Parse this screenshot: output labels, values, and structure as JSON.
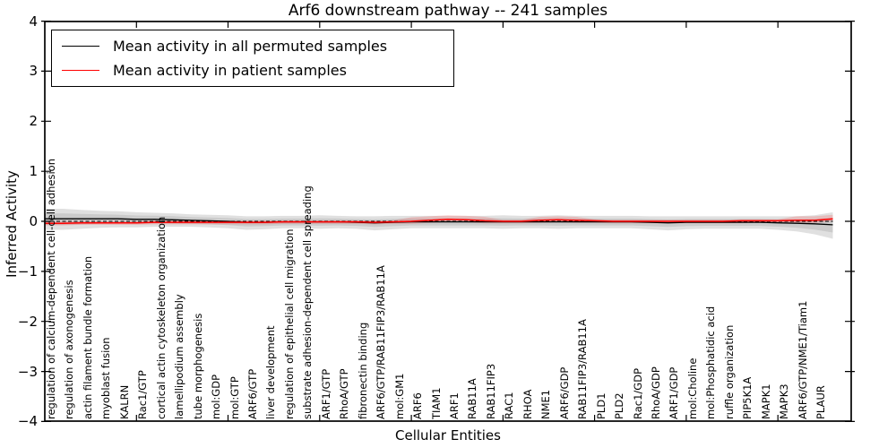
{
  "title": "Arf6 downstream pathway -- 241 samples",
  "legend": {
    "items": [
      {
        "label": "Mean activity in all permuted samples",
        "color": "#000000"
      },
      {
        "label": "Mean activity in patient samples",
        "color": "#ff0000"
      }
    ]
  },
  "chart_data": {
    "type": "line",
    "title": "Arf6 downstream pathway -- 241 samples",
    "xlabel": "Cellular Entities",
    "ylabel": "Inferred Activity",
    "ylim": [
      -4,
      4
    ],
    "yticks": [
      -4,
      -3,
      -2,
      -1,
      0,
      1,
      2,
      3,
      4
    ],
    "ytick_labels": [
      "−4",
      "−3",
      "−2",
      "−1",
      "0",
      "1",
      "2",
      "3",
      "4"
    ],
    "grid": false,
    "legend_position": "upper left",
    "zero_line": {
      "y": 0,
      "style": "dashed",
      "color": "#000000"
    },
    "band_colors": {
      "permuted_std": "rgba(0,0,0,0.12)",
      "patient_std": "rgba(255,0,0,0.16)"
    },
    "categories": [
      "regulation of calcium-dependent cell-cell adhesion",
      "regulation of axonogenesis",
      "actin filament bundle formation",
      "myoblast fusion",
      "KALRN",
      "Rac1/GTP",
      "cortical actin cytoskeleton organization",
      "lamellipodium assembly",
      "tube morphogenesis",
      "mol:GDP",
      "mol:GTP",
      "ARF6/GTP",
      "liver development",
      "regulation of epithelial cell migration",
      "substrate adhesion-dependent cell spreading",
      "ARF1/GTP",
      "RhoA/GTP",
      "fibronectin binding",
      "ARF6/GTP/RAB11FIP3/RAB11A",
      "mol:GM1",
      "ARF6",
      "TIAM1",
      "ARF1",
      "RAB11A",
      "RAB11FIP3",
      "RAC1",
      "RHOA",
      "NME1",
      "ARF6/GDP",
      "RAB11FIP3/RAB11A",
      "PLD1",
      "PLD2",
      "Rac1/GDP",
      "RhoA/GDP",
      "ARF1/GDP",
      "mol:Choline",
      "mol:Phosphatidic acid",
      "ruffle organization",
      "PIP5K1A",
      "MAPK1",
      "MAPK3",
      "ARF6/GTP/NME1/Tiam1",
      "PLAUR"
    ],
    "series": [
      {
        "name": "Mean activity in all permuted samples",
        "color": "#000000",
        "values": [
          0.05,
          0.05,
          0.05,
          0.05,
          0.04,
          0.04,
          0.03,
          0.02,
          0.01,
          0.0,
          -0.02,
          -0.02,
          -0.01,
          -0.01,
          -0.01,
          -0.01,
          -0.02,
          -0.03,
          -0.02,
          -0.01,
          -0.01,
          -0.01,
          -0.01,
          -0.01,
          -0.01,
          -0.01,
          -0.01,
          -0.01,
          -0.01,
          -0.01,
          -0.01,
          -0.01,
          -0.02,
          -0.03,
          -0.02,
          -0.02,
          -0.02,
          -0.02,
          -0.02,
          -0.03,
          -0.04,
          -0.05,
          -0.07
        ]
      },
      {
        "name": "Mean activity in patient samples",
        "color": "#ff0000",
        "values": [
          -0.04,
          -0.03,
          -0.03,
          -0.03,
          -0.03,
          -0.02,
          -0.02,
          -0.02,
          -0.02,
          -0.02,
          -0.02,
          -0.02,
          -0.01,
          -0.01,
          -0.01,
          -0.01,
          -0.01,
          -0.02,
          -0.01,
          0.0,
          0.02,
          0.04,
          0.03,
          0.01,
          0.0,
          0.0,
          0.02,
          0.03,
          0.02,
          0.01,
          0.0,
          0.0,
          0.0,
          0.0,
          0.0,
          0.0,
          0.0,
          0.01,
          0.01,
          0.01,
          0.02,
          0.02,
          0.05
        ]
      }
    ],
    "bands": [
      {
        "name": "permuted-std-band",
        "upper": [
          0.25,
          0.23,
          0.21,
          0.2,
          0.18,
          0.17,
          0.16,
          0.14,
          0.13,
          0.12,
          0.1,
          0.1,
          0.11,
          0.11,
          0.12,
          0.11,
          0.1,
          0.1,
          0.11,
          0.11,
          0.11,
          0.11,
          0.11,
          0.11,
          0.12,
          0.11,
          0.11,
          0.12,
          0.11,
          0.11,
          0.11,
          0.11,
          0.1,
          0.1,
          0.1,
          0.1,
          0.1,
          0.1,
          0.1,
          0.1,
          0.1,
          0.12,
          0.18
        ],
        "lower": [
          -0.17,
          -0.15,
          -0.13,
          -0.12,
          -0.12,
          -0.11,
          -0.11,
          -0.11,
          -0.12,
          -0.14,
          -0.17,
          -0.16,
          -0.14,
          -0.14,
          -0.15,
          -0.14,
          -0.15,
          -0.18,
          -0.16,
          -0.14,
          -0.14,
          -0.14,
          -0.14,
          -0.14,
          -0.15,
          -0.14,
          -0.14,
          -0.15,
          -0.14,
          -0.14,
          -0.14,
          -0.14,
          -0.16,
          -0.18,
          -0.16,
          -0.15,
          -0.15,
          -0.15,
          -0.15,
          -0.17,
          -0.2,
          -0.26,
          -0.35
        ]
      },
      {
        "name": "patient-std-band",
        "upper": [
          -0.01,
          0.0,
          0.0,
          0.0,
          0.0,
          0.01,
          0.01,
          0.01,
          0.01,
          0.01,
          0.01,
          0.01,
          0.02,
          0.02,
          0.02,
          0.02,
          0.02,
          0.01,
          0.02,
          0.08,
          0.1,
          0.12,
          0.11,
          0.09,
          0.03,
          0.03,
          0.09,
          0.1,
          0.09,
          0.04,
          0.03,
          0.03,
          0.03,
          0.03,
          0.03,
          0.03,
          0.03,
          0.04,
          0.04,
          0.04,
          0.1,
          0.1,
          0.13
        ],
        "lower": [
          -0.08,
          -0.07,
          -0.07,
          -0.07,
          -0.07,
          -0.06,
          -0.06,
          -0.06,
          -0.06,
          -0.06,
          -0.06,
          -0.06,
          -0.05,
          -0.05,
          -0.05,
          -0.05,
          -0.05,
          -0.06,
          -0.05,
          -0.05,
          -0.03,
          -0.01,
          -0.02,
          -0.04,
          -0.04,
          -0.04,
          -0.03,
          -0.02,
          -0.03,
          -0.03,
          -0.04,
          -0.04,
          -0.04,
          -0.04,
          -0.04,
          -0.04,
          -0.04,
          -0.04,
          -0.03,
          -0.03,
          -0.03,
          -0.03,
          0.0
        ]
      }
    ]
  }
}
